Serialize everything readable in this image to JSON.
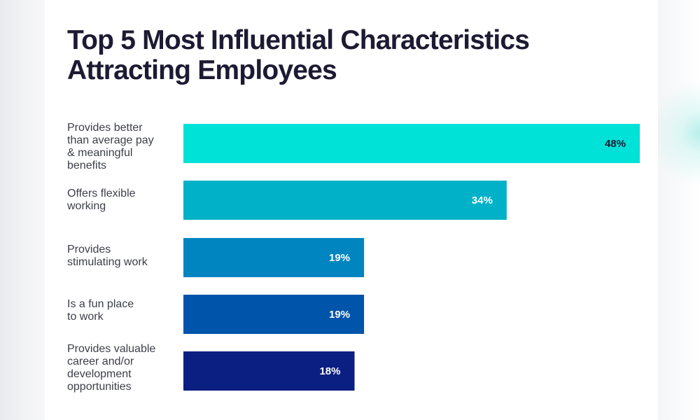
{
  "chart_data": {
    "type": "bar",
    "orientation": "horizontal",
    "title": "Top 5 Most Influential Characteristics Attracting Employees",
    "categories": [
      "Provides better\nthan average pay\n& meaningful\nbenefits",
      "Offers flexible\nworking",
      "Provides\nstimulating work",
      "Is a fun place\nto work",
      "Provides valuable\ncareer and/or\ndevelopment\nopportunities"
    ],
    "values": [
      48,
      34,
      19,
      19,
      18
    ],
    "value_labels": [
      "48%",
      "34%",
      "19%",
      "19%",
      "18%"
    ],
    "unit": "%",
    "xlim": [
      0,
      48
    ],
    "grid": false,
    "legend": "none",
    "bar_colors": [
      "#00e1d7",
      "#00b1c8",
      "#0185c0",
      "#0054aa",
      "#0b1f82"
    ],
    "value_label_colors": [
      "#1d1a33",
      "#ffffff",
      "#ffffff",
      "#ffffff",
      "#ffffff"
    ]
  }
}
